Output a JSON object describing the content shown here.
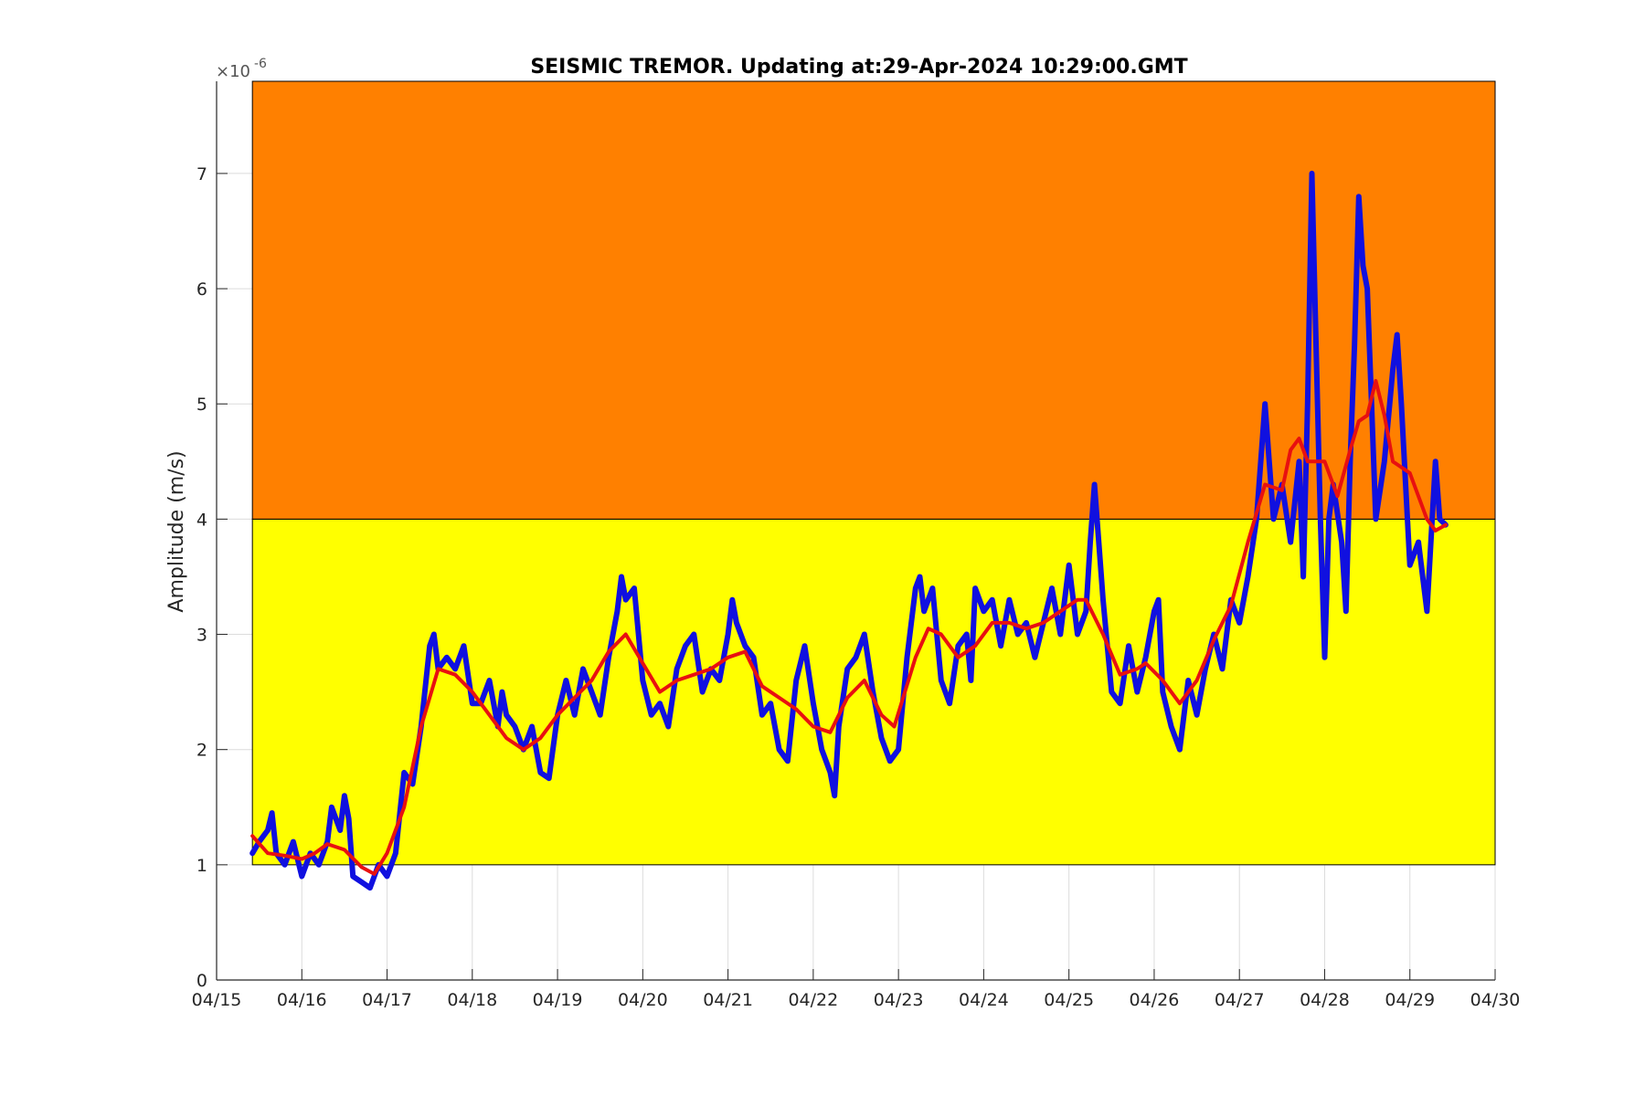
{
  "chart_data": {
    "type": "line",
    "title": "SEISMIC TREMOR. Updating at:29-Apr-2024 10:29:00.GMT",
    "ylabel": "Amplitude (m/s)",
    "y_exponent_base": "×10",
    "y_exponent_power": "-6",
    "xlim": [
      15,
      30
    ],
    "ylim": [
      0,
      7.8
    ],
    "xticks": [
      {
        "value": 15,
        "label": "04/15"
      },
      {
        "value": 16,
        "label": "04/16"
      },
      {
        "value": 17,
        "label": "04/17"
      },
      {
        "value": 18,
        "label": "04/18"
      },
      {
        "value": 19,
        "label": "04/19"
      },
      {
        "value": 20,
        "label": "04/20"
      },
      {
        "value": 21,
        "label": "04/21"
      },
      {
        "value": 22,
        "label": "04/22"
      },
      {
        "value": 23,
        "label": "04/23"
      },
      {
        "value": 24,
        "label": "04/24"
      },
      {
        "value": 25,
        "label": "04/25"
      },
      {
        "value": 26,
        "label": "04/26"
      },
      {
        "value": 27,
        "label": "04/27"
      },
      {
        "value": 28,
        "label": "04/28"
      },
      {
        "value": 29,
        "label": "04/29"
      },
      {
        "value": 30,
        "label": "04/30"
      }
    ],
    "yticks": [
      0,
      1,
      2,
      3,
      4,
      5,
      6,
      7
    ],
    "grid": true,
    "bands": [
      {
        "xfrom": 15.42,
        "xto": 30,
        "from": 1,
        "to": 4,
        "color": "#ffff00"
      },
      {
        "xfrom": 15.42,
        "xto": 30,
        "from": 4,
        "to": 7.8,
        "color": "#ff8000"
      }
    ],
    "series": [
      {
        "color": "#1010e0",
        "width": 6,
        "x": [
          15.42,
          15.5,
          15.6,
          15.65,
          15.7,
          15.8,
          15.9,
          16.0,
          16.1,
          16.2,
          16.3,
          16.35,
          16.45,
          16.5,
          16.55,
          16.6,
          16.7,
          16.8,
          16.9,
          17.0,
          17.1,
          17.2,
          17.3,
          17.4,
          17.5,
          17.55,
          17.6,
          17.7,
          17.8,
          17.9,
          18.0,
          18.1,
          18.2,
          18.3,
          18.35,
          18.4,
          18.5,
          18.6,
          18.7,
          18.8,
          18.9,
          19.0,
          19.1,
          19.2,
          19.3,
          19.4,
          19.5,
          19.6,
          19.7,
          19.75,
          19.8,
          19.9,
          20.0,
          20.1,
          20.2,
          20.3,
          20.4,
          20.5,
          20.6,
          20.7,
          20.8,
          20.9,
          21.0,
          21.05,
          21.1,
          21.2,
          21.3,
          21.4,
          21.5,
          21.6,
          21.7,
          21.8,
          21.9,
          22.0,
          22.1,
          22.15,
          22.2,
          22.25,
          22.3,
          22.4,
          22.5,
          22.6,
          22.7,
          22.8,
          22.9,
          23.0,
          23.1,
          23.2,
          23.25,
          23.3,
          23.4,
          23.5,
          23.6,
          23.7,
          23.8,
          23.85,
          23.9,
          24.0,
          24.1,
          24.2,
          24.3,
          24.4,
          24.5,
          24.6,
          24.7,
          24.8,
          24.9,
          25.0,
          25.1,
          25.2,
          25.25,
          25.3,
          25.35,
          25.4,
          25.5,
          25.6,
          25.7,
          25.8,
          25.9,
          26.0,
          26.05,
          26.1,
          26.2,
          26.3,
          26.4,
          26.5,
          26.6,
          26.7,
          26.8,
          26.9,
          27.0,
          27.1,
          27.2,
          27.3,
          27.35,
          27.4,
          27.5,
          27.6,
          27.7,
          27.75,
          27.8,
          27.85,
          27.9,
          27.95,
          28.0,
          28.05,
          28.1,
          28.2,
          28.25,
          28.3,
          28.35,
          28.4,
          28.45,
          28.5,
          28.55,
          28.6,
          28.7,
          28.8,
          28.85,
          28.9,
          29.0,
          29.1,
          29.2,
          29.3,
          29.35,
          29.42
        ],
        "values": [
          1.1,
          1.2,
          1.3,
          1.45,
          1.1,
          1.0,
          1.2,
          0.9,
          1.1,
          1.0,
          1.2,
          1.5,
          1.3,
          1.6,
          1.4,
          0.9,
          0.85,
          0.8,
          1.0,
          0.9,
          1.1,
          1.8,
          1.7,
          2.2,
          2.9,
          3.0,
          2.7,
          2.8,
          2.7,
          2.9,
          2.4,
          2.4,
          2.6,
          2.2,
          2.5,
          2.3,
          2.2,
          2.0,
          2.2,
          1.8,
          1.75,
          2.3,
          2.6,
          2.3,
          2.7,
          2.5,
          2.3,
          2.8,
          3.2,
          3.5,
          3.3,
          3.4,
          2.6,
          2.3,
          2.4,
          2.2,
          2.7,
          2.9,
          3.0,
          2.5,
          2.7,
          2.6,
          3.0,
          3.3,
          3.1,
          2.9,
          2.8,
          2.3,
          2.4,
          2.0,
          1.9,
          2.6,
          2.9,
          2.4,
          2.0,
          1.9,
          1.8,
          1.6,
          2.2,
          2.7,
          2.8,
          3.0,
          2.5,
          2.1,
          1.9,
          2.0,
          2.8,
          3.4,
          3.5,
          3.2,
          3.4,
          2.6,
          2.4,
          2.9,
          3.0,
          2.6,
          3.4,
          3.2,
          3.3,
          2.9,
          3.3,
          3.0,
          3.1,
          2.8,
          3.1,
          3.4,
          3.0,
          3.6,
          3.0,
          3.2,
          3.8,
          4.3,
          3.8,
          3.3,
          2.5,
          2.4,
          2.9,
          2.5,
          2.8,
          3.2,
          3.3,
          2.5,
          2.2,
          2.0,
          2.6,
          2.3,
          2.7,
          3.0,
          2.7,
          3.3,
          3.1,
          3.5,
          4.0,
          5.0,
          4.5,
          4.0,
          4.3,
          3.8,
          4.5,
          3.5,
          5.0,
          7.0,
          5.5,
          4.0,
          2.8,
          4.0,
          4.3,
          3.8,
          3.2,
          4.5,
          5.5,
          6.8,
          6.2,
          6.0,
          5.0,
          4.0,
          4.5,
          5.3,
          5.6,
          5.0,
          3.6,
          3.8,
          3.2,
          4.5,
          4.0,
          3.95
        ]
      },
      {
        "color": "#e81010",
        "width": 4,
        "x": [
          15.42,
          15.6,
          15.8,
          16.0,
          16.15,
          16.3,
          16.5,
          16.7,
          16.85,
          17.0,
          17.2,
          17.4,
          17.6,
          17.8,
          18.0,
          18.2,
          18.4,
          18.6,
          18.8,
          19.0,
          19.2,
          19.4,
          19.6,
          19.8,
          20.0,
          20.2,
          20.4,
          20.6,
          20.8,
          21.0,
          21.2,
          21.4,
          21.6,
          21.8,
          22.0,
          22.2,
          22.4,
          22.6,
          22.8,
          22.95,
          23.2,
          23.35,
          23.5,
          23.7,
          23.9,
          24.1,
          24.3,
          24.5,
          24.7,
          24.9,
          25.1,
          25.2,
          25.4,
          25.6,
          25.8,
          25.9,
          26.1,
          26.3,
          26.5,
          26.7,
          26.9,
          27.1,
          27.3,
          27.5,
          27.6,
          27.7,
          27.8,
          28.0,
          28.15,
          28.3,
          28.4,
          28.5,
          28.6,
          28.7,
          28.8,
          29.0,
          29.2,
          29.3,
          29.42
        ],
        "values": [
          1.25,
          1.1,
          1.08,
          1.05,
          1.1,
          1.18,
          1.13,
          0.98,
          0.92,
          1.1,
          1.5,
          2.2,
          2.7,
          2.65,
          2.5,
          2.3,
          2.1,
          2.0,
          2.1,
          2.3,
          2.45,
          2.6,
          2.85,
          3.0,
          2.75,
          2.5,
          2.6,
          2.65,
          2.7,
          2.8,
          2.85,
          2.55,
          2.45,
          2.35,
          2.2,
          2.15,
          2.45,
          2.6,
          2.3,
          2.2,
          2.8,
          3.05,
          3.0,
          2.8,
          2.9,
          3.1,
          3.1,
          3.05,
          3.1,
          3.2,
          3.3,
          3.3,
          3.0,
          2.65,
          2.7,
          2.75,
          2.6,
          2.4,
          2.6,
          2.95,
          3.25,
          3.8,
          4.3,
          4.25,
          4.6,
          4.7,
          4.5,
          4.5,
          4.2,
          4.6,
          4.85,
          4.9,
          5.2,
          4.9,
          4.5,
          4.4,
          4.0,
          3.9,
          3.95
        ]
      }
    ]
  }
}
